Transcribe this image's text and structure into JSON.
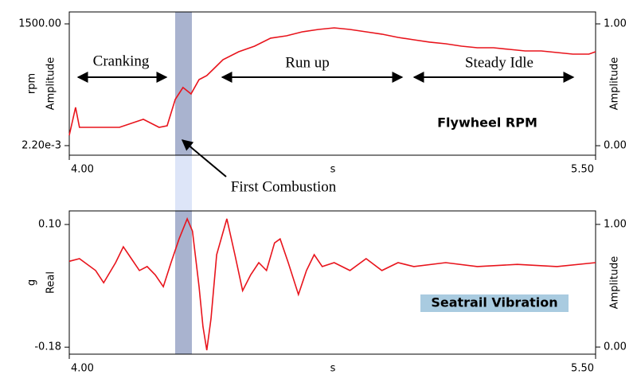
{
  "chart_data": [
    {
      "type": "line",
      "title": "Flywheel RPM",
      "xlabel": "s",
      "ylabels": [
        "rpm",
        "Amplitude"
      ],
      "y2label": "Amplitude",
      "color": "#e8141c",
      "x": [
        4.0,
        4.018,
        4.029,
        4.143,
        4.211,
        4.256,
        4.279,
        4.302,
        4.324,
        4.347,
        4.37,
        4.392,
        4.415,
        4.438,
        4.483,
        4.528,
        4.574,
        4.619,
        4.664,
        4.71,
        4.755,
        4.8,
        4.846,
        4.891,
        4.937,
        4.982,
        5.027,
        5.073,
        5.118,
        5.163,
        5.209,
        5.254,
        5.299,
        5.345,
        5.39,
        5.435,
        5.481,
        5.5
      ],
      "values": [
        127,
        471,
        225,
        225,
        324,
        225,
        245,
        569,
        716,
        637,
        814,
        863,
        961,
        1059,
        1157,
        1225,
        1324,
        1353,
        1402,
        1431,
        1451,
        1431,
        1402,
        1373,
        1333,
        1304,
        1275,
        1255,
        1225,
        1206,
        1206,
        1186,
        1167,
        1167,
        1147,
        1127,
        1127,
        1157
      ],
      "xlim": [
        4.0,
        5.5
      ],
      "xticks": [
        {
          "value": 4.0,
          "label": "4.00"
        },
        {
          "value": 5.5,
          "label": "5.50"
        }
      ],
      "ylim": [
        -118,
        1647
      ],
      "yticks": [
        {
          "value": 1500,
          "label": "1500.00"
        },
        {
          "value": 0.0022,
          "label": "2.20e-3"
        }
      ],
      "y2lim": [
        -0.078,
        1.098
      ],
      "y2ticks": [
        {
          "value": 1,
          "label": "1.00"
        },
        {
          "value": 0,
          "label": "0.00"
        }
      ],
      "annotations": [
        "Cranking",
        "Run up",
        "Steady Idle",
        "First Combustion"
      ]
    },
    {
      "type": "line",
      "title": "Seatrail Vibration",
      "xlabel": "s",
      "ylabels": [
        "g",
        "Real"
      ],
      "y2label": "Amplitude",
      "color": "#e8141c",
      "x": [
        4.0,
        4.029,
        4.075,
        4.098,
        4.132,
        4.154,
        4.177,
        4.2,
        4.222,
        4.245,
        4.268,
        4.29,
        4.313,
        4.336,
        4.351,
        4.37,
        4.381,
        4.392,
        4.404,
        4.42,
        4.449,
        4.472,
        4.494,
        4.517,
        4.54,
        4.562,
        4.585,
        4.601,
        4.624,
        4.653,
        4.676,
        4.698,
        4.721,
        4.755,
        4.8,
        4.846,
        4.891,
        4.937,
        4.982,
        5.073,
        5.163,
        5.277,
        5.39,
        5.5
      ],
      "values": [
        0.016,
        0.022,
        -0.005,
        -0.033,
        0.013,
        0.049,
        0.022,
        -0.005,
        0.004,
        -0.015,
        -0.042,
        0.013,
        0.067,
        0.113,
        0.085,
        -0.042,
        -0.133,
        -0.187,
        -0.115,
        0.031,
        0.113,
        0.031,
        -0.051,
        -0.015,
        0.013,
        -0.005,
        0.058,
        0.067,
        0.013,
        -0.06,
        -0.005,
        0.031,
        0.004,
        0.013,
        -0.005,
        0.022,
        -0.005,
        0.013,
        0.004,
        0.013,
        0.004,
        0.009,
        0.004,
        0.013
      ],
      "xlim": [
        4.0,
        5.5
      ],
      "xticks": [
        {
          "value": 4.0,
          "label": "4.00"
        },
        {
          "value": 5.5,
          "label": "5.50"
        }
      ],
      "ylim": [
        -0.196,
        0.131
      ],
      "yticks": [
        {
          "value": 0.1,
          "label": "0.10"
        },
        {
          "value": -0.18,
          "label": "-0.18"
        }
      ],
      "y2lim": [
        -0.058,
        1.11
      ],
      "y2ticks": [
        {
          "value": 1,
          "label": "1.00"
        },
        {
          "value": 0,
          "label": "0.00"
        }
      ]
    }
  ]
}
